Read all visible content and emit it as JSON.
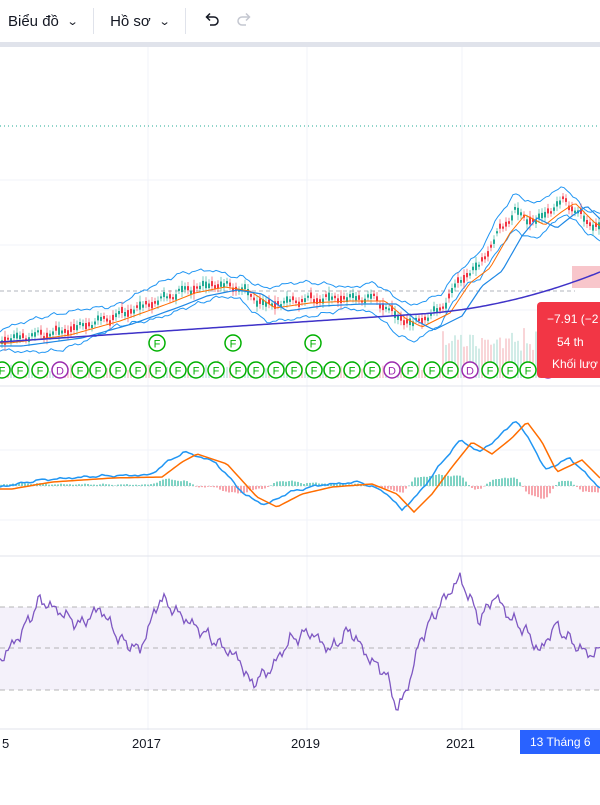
{
  "toolbar": {
    "chart_menu_label": "Biểu đồ",
    "profile_menu_label": "Hồ sơ",
    "undo_icon": "undo-icon",
    "redo_icon": "redo-icon"
  },
  "price_tooltip": {
    "change": "−7.91 (−2",
    "volume_value": "54 th",
    "volume_label": "Khối lượ"
  },
  "event_markers": {
    "dividend_label": "D",
    "financial_label": "F"
  },
  "x_axis": {
    "labels": [
      "5",
      "2017",
      "2019",
      "2021"
    ],
    "crosshair_label": "13 Tháng 6"
  },
  "colors": {
    "accent": "#2962ff",
    "down": "#f23645",
    "up": "#22ab94",
    "macd": "#2196f3",
    "signal": "#ff6d00",
    "rsi": "#7e57c2",
    "marker_green": "#00b000",
    "marker_purple": "#9c27b0"
  }
}
